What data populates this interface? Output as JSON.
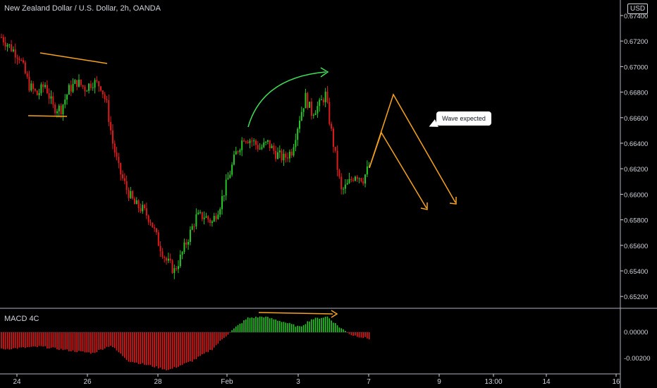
{
  "title": "New Zealand Dollar / U.S. Dollar, 2h, OANDA",
  "currency_badge": "USD",
  "macd_label": "MACD 4C",
  "annotation": "Wave expected",
  "colors": {
    "up": "#26c726",
    "down": "#e01b1b",
    "orange": "#f7a31c",
    "green_arrow": "#3ee05a",
    "axis": "#d1d4dc",
    "divider": "#b2b5be"
  },
  "chart_data": {
    "type": "candlestick",
    "price_axis_labels": [
      "0.67400",
      "0.67200",
      "0.67000",
      "0.66800",
      "0.66600",
      "0.66400",
      "0.66200",
      "0.66000",
      "0.65800",
      "0.65600",
      "0.65400",
      "0.65200"
    ],
    "macd_axis_labels": [
      "0.00000",
      "-0.00200"
    ],
    "x_tick_labels": [
      "24",
      "26",
      "28",
      "Feb",
      "3",
      "7",
      "9",
      "13:00",
      "14",
      "16"
    ],
    "ylim": [
      0.651,
      0.6752
    ],
    "macd_ylim": [
      -0.0031,
      0.0019
    ],
    "anchors": [
      [
        0,
        0.6723
      ],
      [
        4,
        0.6716
      ],
      [
        9,
        0.6708
      ],
      [
        14,
        0.6685
      ],
      [
        18,
        0.6678
      ],
      [
        22,
        0.6686
      ],
      [
        26,
        0.6668
      ],
      [
        30,
        0.6667
      ],
      [
        34,
        0.6682
      ],
      [
        38,
        0.6688
      ],
      [
        42,
        0.6683
      ],
      [
        46,
        0.6688
      ],
      [
        50,
        0.6685
      ],
      [
        53,
        0.667
      ],
      [
        56,
        0.664
      ],
      [
        59,
        0.662
      ],
      [
        63,
        0.6604
      ],
      [
        67,
        0.6592
      ],
      [
        71,
        0.6588
      ],
      [
        75,
        0.658
      ],
      [
        79,
        0.6562
      ],
      [
        83,
        0.6548
      ],
      [
        87,
        0.654
      ],
      [
        90,
        0.655
      ],
      [
        94,
        0.6566
      ],
      [
        98,
        0.6582
      ],
      [
        102,
        0.6583
      ],
      [
        106,
        0.6578
      ],
      [
        110,
        0.6592
      ],
      [
        114,
        0.6612
      ],
      [
        118,
        0.6632
      ],
      [
        122,
        0.6645
      ],
      [
        126,
        0.6642
      ],
      [
        130,
        0.6636
      ],
      [
        134,
        0.664
      ],
      [
        138,
        0.6632
      ],
      [
        142,
        0.6628
      ],
      [
        146,
        0.6634
      ],
      [
        150,
        0.666
      ],
      [
        153,
        0.6676
      ],
      [
        156,
        0.6664
      ],
      [
        160,
        0.667
      ],
      [
        163,
        0.6678
      ],
      [
        165,
        0.6658
      ],
      [
        168,
        0.663
      ],
      [
        171,
        0.6602
      ],
      [
        174,
        0.6607
      ],
      [
        178,
        0.6616
      ],
      [
        182,
        0.6612
      ],
      [
        185,
        0.6622
      ]
    ],
    "macd_anchors": [
      [
        0,
        -0.0013
      ],
      [
        20,
        -0.0011
      ],
      [
        34,
        -0.0014
      ],
      [
        46,
        -0.0016
      ],
      [
        55,
        -0.001
      ],
      [
        64,
        -0.0022
      ],
      [
        76,
        -0.0026
      ],
      [
        84,
        -0.0029
      ],
      [
        96,
        -0.0022
      ],
      [
        106,
        -0.0013
      ],
      [
        112,
        -0.0004
      ],
      [
        118,
        0.0004
      ],
      [
        124,
        0.0011
      ],
      [
        132,
        0.0012
      ],
      [
        142,
        0.0008
      ],
      [
        150,
        0.0004
      ],
      [
        156,
        0.001
      ],
      [
        164,
        0.0012
      ],
      [
        170,
        0.0004
      ],
      [
        176,
        -0.0002
      ],
      [
        185,
        -0.0005
      ]
    ],
    "candle_count": 186
  }
}
